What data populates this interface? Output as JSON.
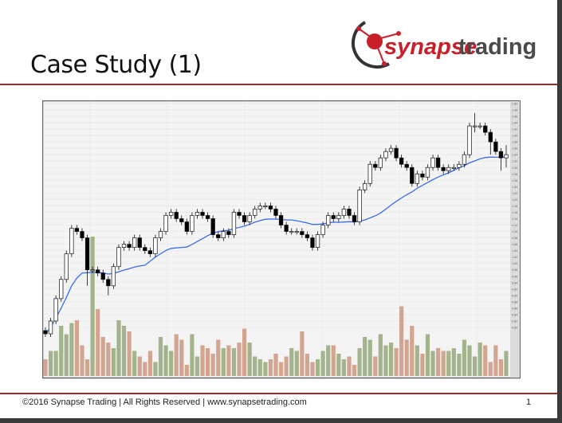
{
  "slide": {
    "title": "Case Study (1)",
    "footer": "©2016 Synapse Trading | All Rights Reserved | www.synapsetrading.com",
    "page_number": "1",
    "logo_text_1": "synapse",
    "logo_text_2": "trading"
  },
  "colors": {
    "accent_red": "#9b2a2a",
    "logo_red": "#c8202a",
    "logo_gray": "#4a4a4a",
    "moving_average": "#3a6cf0",
    "volume_up": "#a3b48d",
    "volume_down": "#d3a590"
  },
  "chart_data": {
    "type": "candlestick",
    "title": "",
    "y_ticks": [
      "0.80",
      "0.82",
      "0.84",
      "0.86",
      "0.88",
      "0.90",
      "0.92",
      "0.94",
      "0.96",
      "0.98",
      "1.00",
      "1.02",
      "1.04",
      "1.06",
      "1.08",
      "1.10",
      "1.12",
      "1.14",
      "1.16",
      "1.18",
      "1.20",
      "1.22",
      "1.24",
      "1.26",
      "1.28",
      "1.30",
      "1.32",
      "1.34",
      "1.36",
      "1.38",
      "1.40",
      "1.42",
      "1.44",
      "1.46",
      "1.48",
      "1.50"
    ],
    "ylim": [
      0.77,
      1.51
    ],
    "axis_position": "right",
    "grid": true,
    "moving_average": "20-period",
    "open": [
      0.79,
      0.78,
      0.82,
      0.89,
      0.95,
      1.03,
      1.11,
      1.1,
      1.08,
      0.98,
      0.98,
      0.97,
      0.95,
      0.93,
      0.99,
      1.05,
      1.06,
      1.05,
      1.08,
      1.05,
      1.04,
      1.03,
      1.08,
      1.1,
      1.15,
      1.16,
      1.14,
      1.13,
      1.1,
      1.15,
      1.16,
      1.15,
      1.14,
      1.09,
      1.08,
      1.1,
      1.09,
      1.16,
      1.15,
      1.13,
      1.15,
      1.17,
      1.18,
      1.18,
      1.17,
      1.15,
      1.12,
      1.1,
      1.1,
      1.1,
      1.09,
      1.08,
      1.05,
      1.09,
      1.12,
      1.15,
      1.14,
      1.15,
      1.17,
      1.15,
      1.13,
      1.23,
      1.25,
      1.31,
      1.3,
      1.33,
      1.35,
      1.36,
      1.33,
      1.31,
      1.3,
      1.25,
      1.28,
      1.27,
      1.3,
      1.33,
      1.3,
      1.29,
      1.3,
      1.3,
      1.31,
      1.34,
      1.43,
      1.43,
      1.43,
      1.41,
      1.38,
      1.35,
      1.33
    ],
    "high": [
      0.8,
      0.83,
      0.9,
      0.96,
      1.04,
      1.12,
      1.12,
      1.11,
      1.09,
      0.99,
      0.99,
      0.98,
      0.96,
      1.0,
      1.06,
      1.07,
      1.07,
      1.09,
      1.09,
      1.06,
      1.05,
      1.09,
      1.11,
      1.16,
      1.17,
      1.17,
      1.15,
      1.14,
      1.16,
      1.17,
      1.17,
      1.16,
      1.15,
      1.1,
      1.11,
      1.11,
      1.17,
      1.17,
      1.16,
      1.16,
      1.18,
      1.19,
      1.19,
      1.19,
      1.18,
      1.16,
      1.13,
      1.11,
      1.11,
      1.11,
      1.1,
      1.09,
      1.1,
      1.13,
      1.16,
      1.16,
      1.16,
      1.18,
      1.18,
      1.16,
      1.24,
      1.26,
      1.32,
      1.32,
      1.34,
      1.36,
      1.37,
      1.37,
      1.34,
      1.32,
      1.31,
      1.29,
      1.29,
      1.31,
      1.34,
      1.34,
      1.31,
      1.31,
      1.31,
      1.32,
      1.35,
      1.44,
      1.47,
      1.44,
      1.44,
      1.42,
      1.39,
      1.36,
      1.37
    ],
    "low": [
      0.77,
      0.77,
      0.81,
      0.88,
      0.94,
      1.02,
      1.09,
      1.07,
      0.93,
      0.97,
      0.96,
      0.94,
      0.9,
      0.92,
      0.98,
      1.04,
      1.04,
      1.04,
      1.04,
      1.03,
      1.02,
      1.02,
      1.07,
      1.09,
      1.14,
      1.13,
      1.12,
      1.09,
      1.09,
      1.14,
      1.14,
      1.13,
      1.08,
      1.07,
      1.07,
      1.08,
      1.08,
      1.14,
      1.12,
      1.12,
      1.14,
      1.16,
      1.17,
      1.16,
      1.14,
      1.11,
      1.09,
      1.09,
      1.09,
      1.08,
      1.07,
      1.04,
      1.04,
      1.08,
      1.11,
      1.13,
      1.13,
      1.14,
      1.14,
      1.12,
      1.12,
      1.22,
      1.24,
      1.29,
      1.29,
      1.32,
      1.34,
      1.32,
      1.3,
      1.29,
      1.24,
      1.24,
      1.26,
      1.26,
      1.29,
      1.29,
      1.28,
      1.28,
      1.29,
      1.29,
      1.3,
      1.33,
      1.41,
      1.42,
      1.4,
      1.34,
      1.34,
      1.29,
      1.3
    ],
    "close": [
      0.78,
      0.82,
      0.89,
      0.95,
      1.03,
      1.11,
      1.1,
      1.08,
      0.98,
      0.98,
      0.97,
      0.95,
      0.93,
      0.99,
      1.05,
      1.06,
      1.05,
      1.08,
      1.05,
      1.04,
      1.03,
      1.08,
      1.1,
      1.15,
      1.16,
      1.14,
      1.13,
      1.1,
      1.15,
      1.16,
      1.15,
      1.14,
      1.09,
      1.08,
      1.1,
      1.09,
      1.16,
      1.15,
      1.13,
      1.15,
      1.17,
      1.18,
      1.18,
      1.17,
      1.15,
      1.12,
      1.1,
      1.1,
      1.1,
      1.09,
      1.08,
      1.05,
      1.09,
      1.12,
      1.15,
      1.14,
      1.15,
      1.17,
      1.15,
      1.13,
      1.23,
      1.25,
      1.31,
      1.3,
      1.33,
      1.35,
      1.36,
      1.33,
      1.31,
      1.3,
      1.25,
      1.28,
      1.27,
      1.3,
      1.33,
      1.3,
      1.29,
      1.3,
      1.3,
      1.31,
      1.34,
      1.43,
      1.43,
      1.43,
      1.41,
      1.38,
      1.35,
      1.33,
      1.34
    ],
    "volume_relative": [
      12,
      18,
      18,
      36,
      30,
      38,
      40,
      22,
      12,
      100,
      48,
      28,
      24,
      20,
      40,
      36,
      32,
      18,
      14,
      10,
      18,
      10,
      28,
      22,
      18,
      30,
      26,
      8,
      30,
      14,
      22,
      20,
      16,
      26,
      20,
      22,
      20,
      24,
      34,
      24,
      14,
      12,
      10,
      12,
      16,
      10,
      14,
      20,
      18,
      32,
      16,
      10,
      12,
      18,
      22,
      22,
      16,
      12,
      14,
      8,
      20,
      28,
      26,
      14,
      30,
      22,
      24,
      20,
      50,
      26,
      36,
      22,
      16,
      30,
      18,
      20,
      18,
      18,
      20,
      16,
      26,
      22,
      14,
      24,
      22,
      10,
      22,
      12,
      18
    ]
  }
}
